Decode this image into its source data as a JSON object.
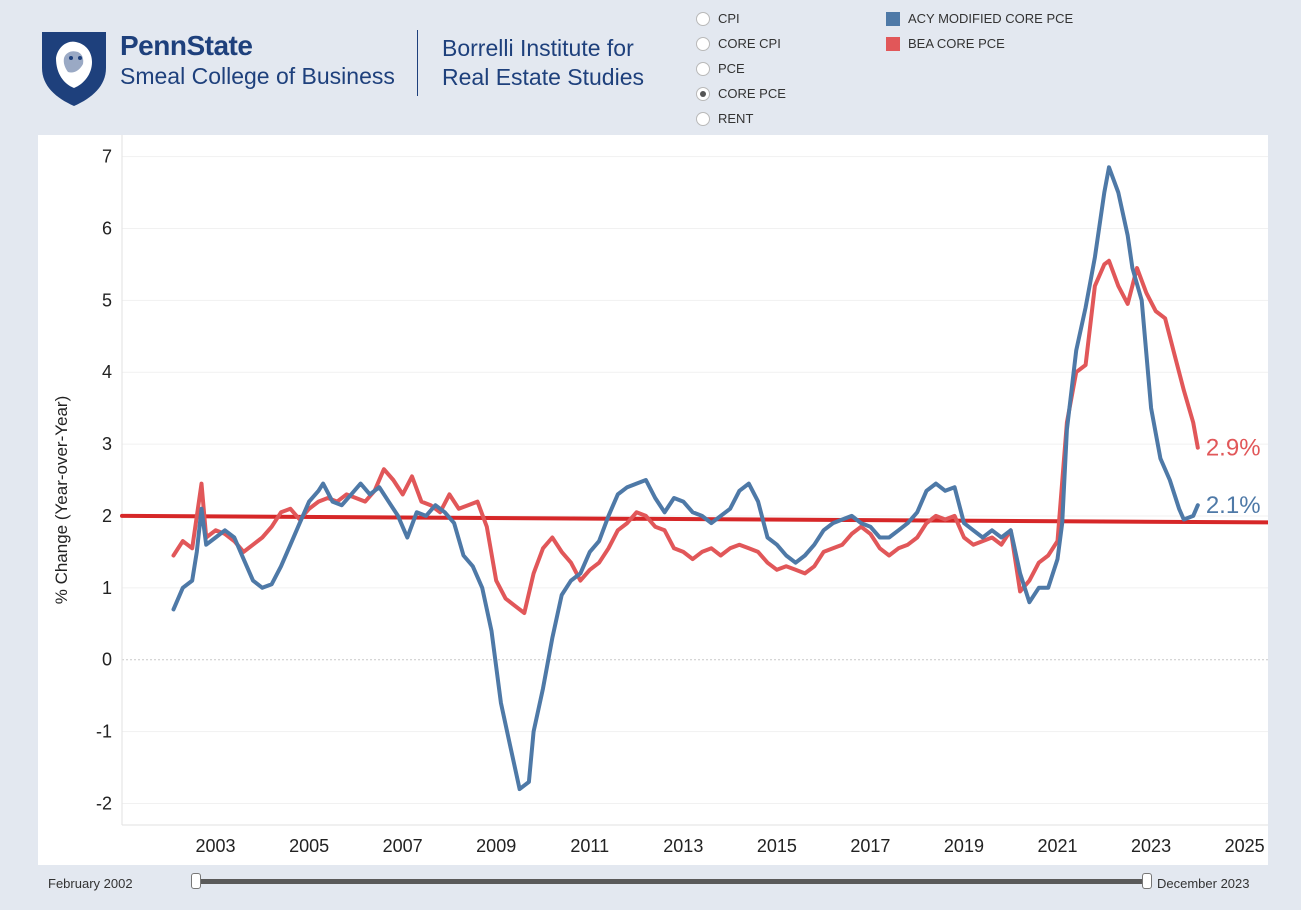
{
  "header": {
    "brand_name": "PennState",
    "college": "Smeal College of Business",
    "institute_line1": "Borrelli Institute for",
    "institute_line2": "Real Estate Studies"
  },
  "radio_options": [
    {
      "label": "CPI",
      "selected": false
    },
    {
      "label": "CORE CPI",
      "selected": false
    },
    {
      "label": "PCE",
      "selected": false
    },
    {
      "label": "CORE PCE",
      "selected": true
    },
    {
      "label": "RENT",
      "selected": false
    }
  ],
  "legend": [
    {
      "label": "ACY MODIFIED CORE PCE",
      "color": "#4e79a7"
    },
    {
      "label": "BEA CORE PCE",
      "color": "#e15759"
    }
  ],
  "slider": {
    "min_label": "February 2002",
    "max_label": "December 2023",
    "start_fraction": 0,
    "end_fraction": 1
  },
  "chart_data": {
    "type": "line",
    "title": "",
    "xlabel": "",
    "ylabel": "% Change (Year-over-Year)",
    "xlim": [
      2001.0,
      2025.5
    ],
    "ylim": [
      -2.3,
      7.3
    ],
    "x_ticks": [
      2003,
      2005,
      2007,
      2009,
      2011,
      2013,
      2015,
      2017,
      2019,
      2021,
      2023,
      2025
    ],
    "y_ticks": [
      -2,
      -1,
      0,
      1,
      2,
      3,
      4,
      5,
      6,
      7
    ],
    "series": [
      {
        "name": "ACY MODIFIED CORE PCE",
        "color": "#4e79a7",
        "end_label": "2.1%",
        "points": [
          [
            2002.1,
            0.7
          ],
          [
            2002.3,
            1.0
          ],
          [
            2002.5,
            1.1
          ],
          [
            2002.6,
            1.5
          ],
          [
            2002.7,
            2.1
          ],
          [
            2002.8,
            1.6
          ],
          [
            2003.0,
            1.7
          ],
          [
            2003.2,
            1.8
          ],
          [
            2003.4,
            1.7
          ],
          [
            2003.6,
            1.4
          ],
          [
            2003.8,
            1.1
          ],
          [
            2004.0,
            1.0
          ],
          [
            2004.2,
            1.05
          ],
          [
            2004.4,
            1.3
          ],
          [
            2004.6,
            1.6
          ],
          [
            2004.8,
            1.9
          ],
          [
            2005.0,
            2.2
          ],
          [
            2005.2,
            2.35
          ],
          [
            2005.3,
            2.45
          ],
          [
            2005.5,
            2.2
          ],
          [
            2005.7,
            2.15
          ],
          [
            2005.9,
            2.3
          ],
          [
            2006.1,
            2.45
          ],
          [
            2006.3,
            2.3
          ],
          [
            2006.5,
            2.4
          ],
          [
            2006.7,
            2.2
          ],
          [
            2006.9,
            2.0
          ],
          [
            2007.1,
            1.7
          ],
          [
            2007.3,
            2.05
          ],
          [
            2007.5,
            2.0
          ],
          [
            2007.7,
            2.15
          ],
          [
            2007.9,
            2.05
          ],
          [
            2008.1,
            1.9
          ],
          [
            2008.3,
            1.45
          ],
          [
            2008.5,
            1.3
          ],
          [
            2008.7,
            1.0
          ],
          [
            2008.9,
            0.4
          ],
          [
            2009.1,
            -0.6
          ],
          [
            2009.3,
            -1.2
          ],
          [
            2009.5,
            -1.8
          ],
          [
            2009.7,
            -1.7
          ],
          [
            2009.8,
            -1.0
          ],
          [
            2010.0,
            -0.4
          ],
          [
            2010.2,
            0.3
          ],
          [
            2010.4,
            0.9
          ],
          [
            2010.6,
            1.1
          ],
          [
            2010.8,
            1.2
          ],
          [
            2011.0,
            1.5
          ],
          [
            2011.2,
            1.65
          ],
          [
            2011.4,
            2.0
          ],
          [
            2011.6,
            2.3
          ],
          [
            2011.8,
            2.4
          ],
          [
            2012.0,
            2.45
          ],
          [
            2012.2,
            2.5
          ],
          [
            2012.4,
            2.25
          ],
          [
            2012.6,
            2.05
          ],
          [
            2012.8,
            2.25
          ],
          [
            2013.0,
            2.2
          ],
          [
            2013.2,
            2.05
          ],
          [
            2013.4,
            2.0
          ],
          [
            2013.6,
            1.9
          ],
          [
            2013.8,
            2.0
          ],
          [
            2014.0,
            2.1
          ],
          [
            2014.2,
            2.35
          ],
          [
            2014.4,
            2.45
          ],
          [
            2014.6,
            2.2
          ],
          [
            2014.8,
            1.7
          ],
          [
            2015.0,
            1.6
          ],
          [
            2015.2,
            1.45
          ],
          [
            2015.4,
            1.35
          ],
          [
            2015.6,
            1.45
          ],
          [
            2015.8,
            1.6
          ],
          [
            2016.0,
            1.8
          ],
          [
            2016.2,
            1.9
          ],
          [
            2016.4,
            1.95
          ],
          [
            2016.6,
            2.0
          ],
          [
            2016.8,
            1.9
          ],
          [
            2017.0,
            1.85
          ],
          [
            2017.2,
            1.7
          ],
          [
            2017.4,
            1.7
          ],
          [
            2017.6,
            1.8
          ],
          [
            2017.8,
            1.9
          ],
          [
            2018.0,
            2.05
          ],
          [
            2018.2,
            2.35
          ],
          [
            2018.4,
            2.45
          ],
          [
            2018.6,
            2.35
          ],
          [
            2018.8,
            2.4
          ],
          [
            2019.0,
            1.9
          ],
          [
            2019.2,
            1.8
          ],
          [
            2019.4,
            1.7
          ],
          [
            2019.6,
            1.8
          ],
          [
            2019.8,
            1.7
          ],
          [
            2020.0,
            1.8
          ],
          [
            2020.2,
            1.2
          ],
          [
            2020.4,
            0.8
          ],
          [
            2020.6,
            1.0
          ],
          [
            2020.8,
            1.0
          ],
          [
            2021.0,
            1.4
          ],
          [
            2021.1,
            1.9
          ],
          [
            2021.2,
            3.2
          ],
          [
            2021.4,
            4.3
          ],
          [
            2021.6,
            4.9
          ],
          [
            2021.8,
            5.6
          ],
          [
            2022.0,
            6.5
          ],
          [
            2022.1,
            6.85
          ],
          [
            2022.3,
            6.5
          ],
          [
            2022.5,
            5.9
          ],
          [
            2022.6,
            5.45
          ],
          [
            2022.8,
            5.0
          ],
          [
            2023.0,
            3.5
          ],
          [
            2023.2,
            2.8
          ],
          [
            2023.4,
            2.5
          ],
          [
            2023.6,
            2.1
          ],
          [
            2023.7,
            1.95
          ],
          [
            2023.9,
            2.0
          ],
          [
            2024.0,
            2.15
          ]
        ]
      },
      {
        "name": "BEA CORE PCE",
        "color": "#e15759",
        "end_label": "2.9%",
        "points": [
          [
            2002.1,
            1.45
          ],
          [
            2002.3,
            1.65
          ],
          [
            2002.5,
            1.55
          ],
          [
            2002.7,
            2.45
          ],
          [
            2002.8,
            1.7
          ],
          [
            2003.0,
            1.8
          ],
          [
            2003.2,
            1.75
          ],
          [
            2003.4,
            1.65
          ],
          [
            2003.6,
            1.5
          ],
          [
            2003.8,
            1.6
          ],
          [
            2004.0,
            1.7
          ],
          [
            2004.2,
            1.85
          ],
          [
            2004.4,
            2.05
          ],
          [
            2004.6,
            2.1
          ],
          [
            2004.8,
            1.95
          ],
          [
            2005.0,
            2.1
          ],
          [
            2005.2,
            2.2
          ],
          [
            2005.4,
            2.25
          ],
          [
            2005.6,
            2.2
          ],
          [
            2005.8,
            2.3
          ],
          [
            2006.0,
            2.25
          ],
          [
            2006.2,
            2.2
          ],
          [
            2006.4,
            2.35
          ],
          [
            2006.6,
            2.65
          ],
          [
            2006.8,
            2.5
          ],
          [
            2007.0,
            2.3
          ],
          [
            2007.2,
            2.55
          ],
          [
            2007.4,
            2.2
          ],
          [
            2007.6,
            2.15
          ],
          [
            2007.8,
            2.05
          ],
          [
            2008.0,
            2.3
          ],
          [
            2008.2,
            2.1
          ],
          [
            2008.4,
            2.15
          ],
          [
            2008.6,
            2.2
          ],
          [
            2008.8,
            1.85
          ],
          [
            2009.0,
            1.1
          ],
          [
            2009.2,
            0.85
          ],
          [
            2009.4,
            0.75
          ],
          [
            2009.6,
            0.65
          ],
          [
            2009.8,
            1.2
          ],
          [
            2010.0,
            1.55
          ],
          [
            2010.2,
            1.7
          ],
          [
            2010.4,
            1.5
          ],
          [
            2010.6,
            1.35
          ],
          [
            2010.8,
            1.1
          ],
          [
            2011.0,
            1.25
          ],
          [
            2011.2,
            1.35
          ],
          [
            2011.4,
            1.55
          ],
          [
            2011.6,
            1.8
          ],
          [
            2011.8,
            1.9
          ],
          [
            2012.0,
            2.05
          ],
          [
            2012.2,
            2.0
          ],
          [
            2012.4,
            1.85
          ],
          [
            2012.6,
            1.8
          ],
          [
            2012.8,
            1.55
          ],
          [
            2013.0,
            1.5
          ],
          [
            2013.2,
            1.4
          ],
          [
            2013.4,
            1.5
          ],
          [
            2013.6,
            1.55
          ],
          [
            2013.8,
            1.45
          ],
          [
            2014.0,
            1.55
          ],
          [
            2014.2,
            1.6
          ],
          [
            2014.4,
            1.55
          ],
          [
            2014.6,
            1.5
          ],
          [
            2014.8,
            1.35
          ],
          [
            2015.0,
            1.25
          ],
          [
            2015.2,
            1.3
          ],
          [
            2015.4,
            1.25
          ],
          [
            2015.6,
            1.2
          ],
          [
            2015.8,
            1.3
          ],
          [
            2016.0,
            1.5
          ],
          [
            2016.2,
            1.55
          ],
          [
            2016.4,
            1.6
          ],
          [
            2016.6,
            1.75
          ],
          [
            2016.8,
            1.85
          ],
          [
            2017.0,
            1.75
          ],
          [
            2017.2,
            1.55
          ],
          [
            2017.4,
            1.45
          ],
          [
            2017.6,
            1.55
          ],
          [
            2017.8,
            1.6
          ],
          [
            2018.0,
            1.7
          ],
          [
            2018.2,
            1.9
          ],
          [
            2018.4,
            2.0
          ],
          [
            2018.6,
            1.95
          ],
          [
            2018.8,
            2.0
          ],
          [
            2019.0,
            1.7
          ],
          [
            2019.2,
            1.6
          ],
          [
            2019.4,
            1.65
          ],
          [
            2019.6,
            1.7
          ],
          [
            2019.8,
            1.6
          ],
          [
            2020.0,
            1.8
          ],
          [
            2020.2,
            0.95
          ],
          [
            2020.4,
            1.1
          ],
          [
            2020.6,
            1.35
          ],
          [
            2020.8,
            1.45
          ],
          [
            2021.0,
            1.65
          ],
          [
            2021.2,
            3.3
          ],
          [
            2021.4,
            4.0
          ],
          [
            2021.6,
            4.1
          ],
          [
            2021.8,
            5.2
          ],
          [
            2022.0,
            5.5
          ],
          [
            2022.1,
            5.55
          ],
          [
            2022.3,
            5.2
          ],
          [
            2022.5,
            4.95
          ],
          [
            2022.7,
            5.45
          ],
          [
            2022.9,
            5.1
          ],
          [
            2023.1,
            4.85
          ],
          [
            2023.3,
            4.75
          ],
          [
            2023.5,
            4.25
          ],
          [
            2023.7,
            3.75
          ],
          [
            2023.9,
            3.3
          ],
          [
            2024.0,
            2.95
          ]
        ]
      },
      {
        "name": "Trend",
        "color": "#d62728",
        "end_label": "",
        "points": [
          [
            2001.0,
            2.0
          ],
          [
            2025.5,
            1.91
          ]
        ]
      }
    ]
  }
}
